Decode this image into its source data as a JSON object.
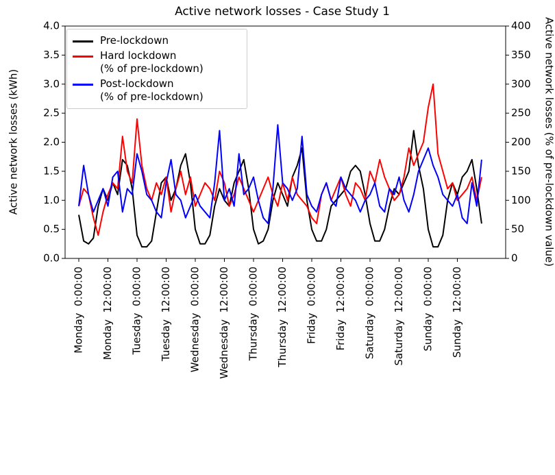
{
  "chart_data": {
    "type": "line",
    "title": "Active network losses - Case Study 1",
    "ylabel": "Active network losses (kWh)",
    "y2label": "Active network losses (% of pre-lockdown value)",
    "categories": [
      "Monday  0:00:00",
      null,
      null,
      null,
      null,
      null,
      "Monday  12:00:00",
      null,
      null,
      null,
      null,
      null,
      "Tuesday  0:00:00",
      null,
      null,
      null,
      null,
      null,
      "Tuesday  12:00:00",
      null,
      null,
      null,
      null,
      null,
      "Wednesday  0:00:00",
      null,
      null,
      null,
      null,
      null,
      "Wednesday  12:00:00",
      null,
      null,
      null,
      null,
      null,
      "Thursday  0:00:00",
      null,
      null,
      null,
      null,
      null,
      "Thursday  12:00:00",
      null,
      null,
      null,
      null,
      null,
      "Friday  0:00:00",
      null,
      null,
      null,
      null,
      null,
      "Friday  12:00:00",
      null,
      null,
      null,
      null,
      null,
      "Saturday  0:00:00",
      null,
      null,
      null,
      null,
      null,
      "Saturday  12:00:00",
      null,
      null,
      null,
      null,
      null,
      "Sunday  0:00:00",
      null,
      null,
      null,
      null,
      null,
      "Sunday  12:00:00",
      null,
      null,
      null,
      null,
      null
    ],
    "series": [
      {
        "name": "Pre-lockdown",
        "color": "#000000",
        "axis": "y",
        "values": [
          0.75,
          0.3,
          0.25,
          0.35,
          0.9,
          1.2,
          1.0,
          1.3,
          1.1,
          1.7,
          1.6,
          1.2,
          0.4,
          0.2,
          0.2,
          0.3,
          0.8,
          1.3,
          1.4,
          1.0,
          1.2,
          1.6,
          1.8,
          1.3,
          0.5,
          0.25,
          0.25,
          0.4,
          0.9,
          1.2,
          1.0,
          0.9,
          1.3,
          1.5,
          1.7,
          1.2,
          0.5,
          0.25,
          0.3,
          0.5,
          1.0,
          1.3,
          1.1,
          0.9,
          1.4,
          1.6,
          1.9,
          1.0,
          0.5,
          0.3,
          0.3,
          0.5,
          0.9,
          1.0,
          1.1,
          1.2,
          1.5,
          1.6,
          1.5,
          1.1,
          0.6,
          0.3,
          0.3,
          0.5,
          0.9,
          1.2,
          1.1,
          1.3,
          1.5,
          2.2,
          1.6,
          1.2,
          0.5,
          0.2,
          0.2,
          0.4,
          1.0,
          1.3,
          1.1,
          1.4,
          1.5,
          1.7,
          1.2,
          0.6
        ]
      },
      {
        "name": "Hard lockdown\n(% of pre-lockdown)",
        "color": "#ff0000",
        "axis": "y2",
        "values": [
          90,
          120,
          110,
          70,
          40,
          80,
          110,
          130,
          120,
          210,
          150,
          130,
          240,
          160,
          120,
          100,
          130,
          110,
          140,
          80,
          120,
          150,
          110,
          140,
          90,
          110,
          130,
          120,
          100,
          150,
          130,
          90,
          110,
          140,
          120,
          100,
          80,
          100,
          120,
          140,
          110,
          90,
          130,
          100,
          140,
          110,
          100,
          90,
          70,
          60,
          110,
          130,
          100,
          120,
          140,
          110,
          90,
          130,
          120,
          100,
          150,
          130,
          170,
          140,
          120,
          100,
          110,
          140,
          190,
          160,
          180,
          200,
          260,
          300,
          180,
          150,
          120,
          130,
          100,
          110,
          120,
          140,
          100,
          140
        ]
      },
      {
        "name": "Post-lockdown\n(% of pre-lockdown)",
        "color": "#0000ff",
        "axis": "y2",
        "values": [
          90,
          160,
          110,
          80,
          100,
          120,
          90,
          140,
          150,
          80,
          120,
          110,
          180,
          150,
          110,
          100,
          80,
          70,
          130,
          170,
          110,
          100,
          70,
          90,
          110,
          90,
          80,
          70,
          130,
          220,
          100,
          120,
          90,
          180,
          110,
          120,
          140,
          100,
          70,
          60,
          120,
          230,
          130,
          120,
          100,
          120,
          210,
          110,
          90,
          80,
          110,
          130,
          100,
          90,
          140,
          120,
          110,
          100,
          80,
          100,
          110,
          130,
          90,
          80,
          120,
          110,
          140,
          100,
          80,
          110,
          150,
          170,
          190,
          160,
          140,
          110,
          100,
          90,
          110,
          70,
          60,
          130,
          90,
          170
        ]
      }
    ],
    "ylim": [
      0,
      4
    ],
    "yticks": [
      {
        "value": 0,
        "label": "0.0"
      },
      {
        "value": 0.5,
        "label": "0.5"
      },
      {
        "value": 1,
        "label": "1.0"
      },
      {
        "value": 1.5,
        "label": "1.5"
      },
      {
        "value": 2,
        "label": "2.0"
      },
      {
        "value": 2.5,
        "label": "2.5"
      },
      {
        "value": 3,
        "label": "3.0"
      },
      {
        "value": 3.5,
        "label": "3.5"
      },
      {
        "value": 4,
        "label": "4.0"
      }
    ],
    "y2lim": [
      0,
      400
    ],
    "y2ticks": [
      0,
      50,
      100,
      150,
      200,
      250,
      300,
      350,
      400
    ],
    "legend": "upper left"
  }
}
